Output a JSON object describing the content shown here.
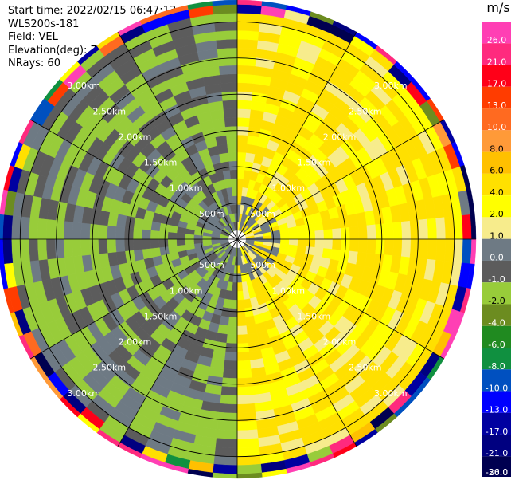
{
  "header": {
    "start_time": "Start time: 2022/02/15 06:47:13",
    "instrument": "WLS200s-181",
    "field": "Field: VEL",
    "elevation": "Elevation(deg): 75.00",
    "nrays": "NRays: 60"
  },
  "colorbar": {
    "unit": "m/s",
    "ticks": [
      "26.0",
      "21.0",
      "17.0",
      "13.0",
      "10.0",
      "8.0",
      "6.0",
      "4.0",
      "2.0",
      "1.0",
      "0.0",
      "-1.0",
      "-2.0",
      "-4.0",
      "-6.0",
      "-8.0",
      "-10.0",
      "-13.0",
      "-17.0",
      "-21.0",
      "-26.0",
      "-30.0"
    ],
    "colors": [
      "#ff3fb4",
      "#ff2a7e",
      "#ff0018",
      "#ff3c00",
      "#ff6a20",
      "#ff9a38",
      "#ffc000",
      "#ffe000",
      "#ffff00",
      "#f7ec8c",
      "#6e7a84",
      "#5c5c5c",
      "#98cc3a",
      "#6c8c20",
      "#208a20",
      "#109040",
      "#0050c0",
      "#0000ff",
      "#0000a0",
      "#000080",
      "#000050"
    ]
  },
  "chart_data": {
    "type": "heatmap",
    "projection": "polar PPI",
    "field": "VEL",
    "unit": "m/s",
    "range_rings_km": [
      0.5,
      1.0,
      1.5,
      2.0,
      2.5,
      3.0
    ],
    "range_ring_labels": [
      "500m",
      "1.00km",
      "1.50km",
      "2.00km",
      "2.50km",
      "3.00km"
    ],
    "max_range_km": 3.3,
    "n_rays": 60,
    "azimuth_spokes_deg": [
      0,
      30,
      60,
      90,
      120,
      150,
      180,
      210,
      240,
      270,
      300,
      330
    ],
    "sectors": [
      {
        "azimuth_from": 0,
        "azimuth_to": 90,
        "dominant_velocity_ms": 2.0,
        "range_m_s": [
          0,
          4
        ]
      },
      {
        "azimuth_from": 90,
        "azimuth_to": 180,
        "dominant_velocity_ms": 2.0,
        "range_m_s": [
          -1,
          4
        ]
      },
      {
        "azimuth_from": 180,
        "azimuth_to": 270,
        "dominant_velocity_ms": -2.0,
        "range_m_s": [
          -4,
          0
        ]
      },
      {
        "azimuth_from": 270,
        "azimuth_to": 360,
        "dominant_velocity_ms": -2.0,
        "range_m_s": [
          -4,
          0
        ]
      }
    ],
    "outer_gate_note_ms": [
      -30,
      26
    ]
  }
}
